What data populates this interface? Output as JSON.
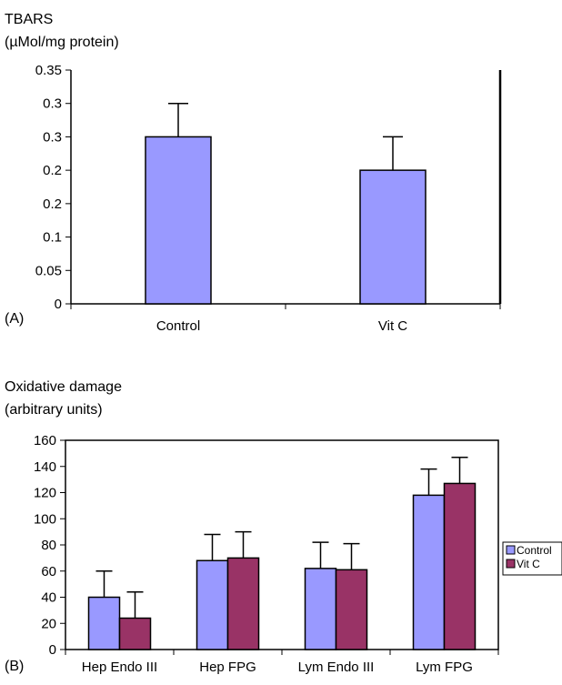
{
  "chart_data": [
    {
      "panel_label": "(A)",
      "type": "bar",
      "ylabel_line1": "TBARS",
      "ylabel_line2": "(µMol/mg protein)",
      "categories": [
        "Control",
        "Vit C"
      ],
      "series": [
        {
          "values": [
            0.25,
            0.2
          ],
          "errors": [
            0.05,
            0.05
          ]
        }
      ],
      "yticks": [
        "0",
        "0.05",
        "0.1",
        "0.2",
        "0.2",
        "0.3",
        "0.3",
        "0.35"
      ],
      "ylim": [
        0,
        0.35
      ],
      "grid": false,
      "colors": [
        "#9999ff"
      ]
    },
    {
      "panel_label": "(B)",
      "type": "bar",
      "ylabel_line1": "Oxidative damage",
      "ylabel_line2": "(arbitrary units)",
      "categories": [
        "Hep Endo III",
        "Hep FPG",
        "Lym Endo III",
        "Lym FPG"
      ],
      "series": [
        {
          "name": "Control",
          "values": [
            40,
            68,
            62,
            118
          ],
          "errors": [
            20,
            20,
            20,
            20
          ]
        },
        {
          "name": "Vit C",
          "values": [
            24,
            70,
            61,
            127
          ],
          "errors": [
            20,
            20,
            20,
            20
          ]
        }
      ],
      "yticks": [
        "0",
        "20",
        "40",
        "60",
        "80",
        "100",
        "120",
        "140",
        "160"
      ],
      "ylim": [
        0,
        160
      ],
      "grid": false,
      "legend": "right",
      "colors": [
        "#9999ff",
        "#993366"
      ]
    }
  ]
}
